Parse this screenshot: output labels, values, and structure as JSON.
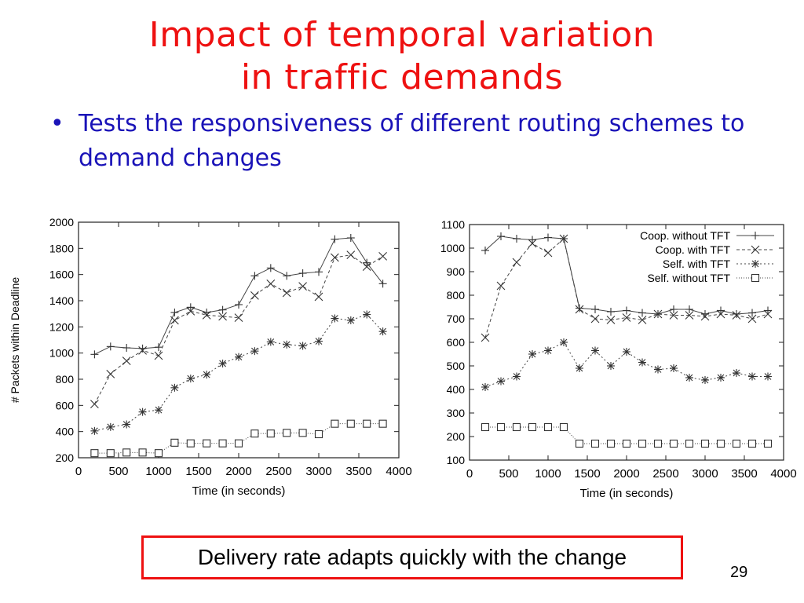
{
  "slide": {
    "title_line1": "Impact of temporal variation",
    "title_line2": "in traffic demands",
    "bullet_marker": "•",
    "bullet_text": "Tests the responsiveness of different routing schemes to demand changes",
    "callout": "Delivery rate adapts quickly with the change",
    "page_number": "29",
    "colors": {
      "title": "#ee1111",
      "bullet": "#1a13b8",
      "callout_border": "#ee1111"
    }
  },
  "chart_data": [
    {
      "type": "line",
      "xlabel": "Time (in seconds)",
      "ylabel": "# Packets within Deadline",
      "xlim": [
        0,
        4000
      ],
      "ylim": [
        200,
        2000
      ],
      "xticks": [
        0,
        500,
        1000,
        1500,
        2000,
        2500,
        3000,
        3500,
        4000
      ],
      "yticks": [
        200,
        400,
        600,
        800,
        1000,
        1200,
        1400,
        1600,
        1800,
        2000
      ],
      "grid": false,
      "legend": "none",
      "x": [
        200,
        400,
        600,
        800,
        1000,
        1200,
        1400,
        1600,
        1800,
        2000,
        2200,
        2400,
        2600,
        2800,
        3000,
        3200,
        3400,
        3600,
        3800
      ],
      "series": [
        {
          "name": "Coop. without TFT",
          "marker": "plus",
          "dash": "solid",
          "values": [
            990,
            1050,
            1040,
            1035,
            1045,
            1310,
            1350,
            1310,
            1330,
            1370,
            1590,
            1650,
            1590,
            1610,
            1620,
            1870,
            1880,
            1690,
            1530
          ]
        },
        {
          "name": "Coop. with TFT",
          "marker": "x",
          "dash": "dashed",
          "values": [
            610,
            840,
            940,
            1020,
            980,
            1250,
            1320,
            1290,
            1280,
            1270,
            1440,
            1530,
            1460,
            1510,
            1430,
            1730,
            1750,
            1660,
            1740
          ]
        },
        {
          "name": "Self. with TFT",
          "marker": "star",
          "dash": "dotted",
          "values": [
            405,
            435,
            455,
            550,
            565,
            735,
            805,
            835,
            920,
            970,
            1015,
            1085,
            1065,
            1055,
            1090,
            1265,
            1250,
            1295,
            1165
          ]
        },
        {
          "name": "Self. without TFT",
          "marker": "square",
          "dash": "finedot",
          "values": [
            235,
            235,
            240,
            240,
            235,
            315,
            310,
            310,
            310,
            310,
            385,
            385,
            390,
            390,
            380,
            460,
            460,
            460,
            460
          ]
        }
      ]
    },
    {
      "type": "line",
      "xlabel": "Time (in seconds)",
      "ylabel": "",
      "xlim": [
        0,
        4000
      ],
      "ylim": [
        100,
        1100
      ],
      "xticks": [
        0,
        500,
        1000,
        1500,
        2000,
        2500,
        3000,
        3500,
        4000
      ],
      "yticks": [
        100,
        200,
        300,
        400,
        500,
        600,
        700,
        800,
        900,
        1000,
        1100
      ],
      "grid": false,
      "legend": "top-right",
      "x": [
        200,
        400,
        600,
        800,
        1000,
        1200,
        1400,
        1600,
        1800,
        2000,
        2200,
        2400,
        2600,
        2800,
        3000,
        3200,
        3400,
        3600,
        3800
      ],
      "series": [
        {
          "name": "Coop. without TFT",
          "marker": "plus",
          "dash": "solid",
          "values": [
            990,
            1050,
            1040,
            1035,
            1045,
            1040,
            745,
            740,
            730,
            735,
            725,
            720,
            740,
            740,
            720,
            735,
            720,
            725,
            735
          ]
        },
        {
          "name": "Coop. with TFT",
          "marker": "x",
          "dash": "dashed",
          "values": [
            620,
            840,
            940,
            1020,
            980,
            1040,
            740,
            700,
            695,
            705,
            695,
            720,
            715,
            715,
            710,
            720,
            715,
            700,
            720
          ]
        },
        {
          "name": "Self. with TFT",
          "marker": "star",
          "dash": "dotted",
          "values": [
            410,
            435,
            455,
            550,
            565,
            600,
            490,
            565,
            500,
            560,
            515,
            485,
            490,
            450,
            440,
            450,
            470,
            455,
            455
          ]
        },
        {
          "name": "Self. without TFT",
          "marker": "square",
          "dash": "finedot",
          "values": [
            240,
            240,
            240,
            240,
            240,
            240,
            170,
            170,
            170,
            170,
            170,
            170,
            170,
            170,
            170,
            170,
            170,
            170,
            170
          ]
        }
      ]
    }
  ]
}
